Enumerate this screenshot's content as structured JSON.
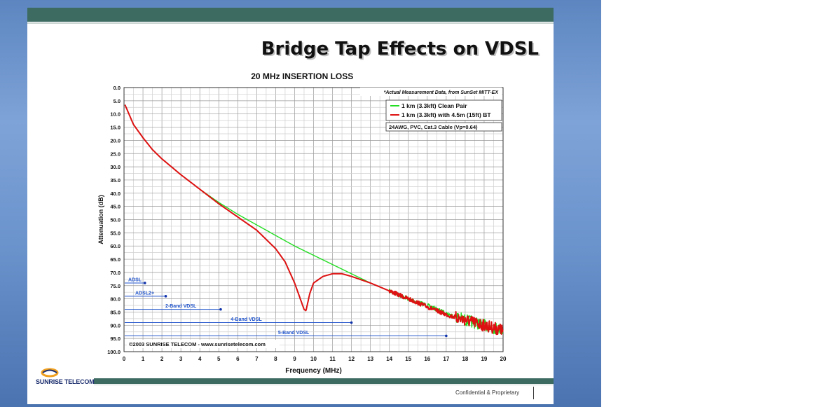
{
  "slide": {
    "title": "Bridge Tap Effects on VDSL",
    "footer": "Confidential & Proprietary",
    "logo_text": "SUNRISE TELECOM",
    "colors": {
      "bar": "#3d6b62",
      "logo": "#1d2f6f",
      "logo_accent": "#f0a020"
    }
  },
  "chart_data": {
    "type": "line",
    "title": "20 MHz INSERTION LOSS",
    "xlabel": "Frequency (MHz)",
    "ylabel": "Attenuation (dB)",
    "xlim": [
      0,
      20
    ],
    "ylim": [
      0,
      100
    ],
    "y_inverted": true,
    "grid": true,
    "x_ticks": [
      "0",
      "1",
      "2",
      "3",
      "4",
      "5",
      "6",
      "7",
      "8",
      "9",
      "10",
      "11",
      "12",
      "13",
      "14",
      "15",
      "16",
      "17",
      "18",
      "19",
      "20"
    ],
    "y_ticks": [
      "0.0",
      "5.0",
      "10.0",
      "15.0",
      "20.0",
      "25.0",
      "30.0",
      "35.0",
      "40.0",
      "45.0",
      "50.0",
      "55.0",
      "60.0",
      "65.0",
      "70.0",
      "75.0",
      "80.0",
      "85.0",
      "90.0",
      "95.0",
      "100.0"
    ],
    "note": "*Actual Measurement Data, from SunSet MITT-EX",
    "cable_info": "24AWG, PVC, Cat.3 Cable (Vp=0.64)",
    "copyright": "©2003 SUNRISE TELECOM - www.sunrisetelecom.com",
    "legend_position": "top-right",
    "series": [
      {
        "name": "1 km (3.3kft) Clean Pair",
        "color": "#22dd22",
        "x": [
          0.05,
          0.5,
          1,
          1.5,
          2,
          3,
          4,
          5,
          6,
          7,
          8,
          9,
          10,
          11,
          12,
          13,
          14,
          15,
          16,
          17,
          18,
          19,
          19.5,
          20
        ],
        "y": [
          6.5,
          14,
          19,
          23.5,
          27,
          33,
          38.5,
          43.5,
          48,
          52,
          56,
          60,
          63.5,
          67,
          70.5,
          74,
          77,
          80,
          82.5,
          85.5,
          88,
          90,
          91,
          91.5
        ]
      },
      {
        "name": "1 km (3.3kft) with 4.5m (15ft) BT",
        "color": "#dd1111",
        "x": [
          0.05,
          0.5,
          1,
          1.5,
          2,
          3,
          4,
          5,
          6,
          7,
          8,
          8.5,
          9,
          9.3,
          9.5,
          9.6,
          9.8,
          10,
          10.5,
          11,
          11.5,
          12,
          13,
          14,
          15,
          16,
          17,
          18,
          19,
          19.5,
          20
        ],
        "y": [
          6.5,
          14,
          19,
          23.5,
          27,
          33,
          38.5,
          44,
          49,
          54,
          61,
          66,
          74,
          80,
          84,
          84.5,
          78,
          74,
          71.5,
          70.5,
          70.5,
          71.5,
          74,
          77,
          80,
          83,
          86,
          88,
          90,
          91,
          92
        ]
      }
    ],
    "bands": [
      {
        "label": "ADSL",
        "end_mhz": 1.1,
        "y": 74
      },
      {
        "label": "ADSL2+",
        "end_mhz": 2.2,
        "y": 79
      },
      {
        "label": "2-Band VDSL",
        "end_mhz": 5.1,
        "y": 84
      },
      {
        "label": "4-Band VDSL",
        "end_mhz": 12.0,
        "y": 89
      },
      {
        "label": "5-Band VDSL",
        "end_mhz": 17.0,
        "y": 94
      }
    ],
    "band_color": "#2255cc"
  }
}
